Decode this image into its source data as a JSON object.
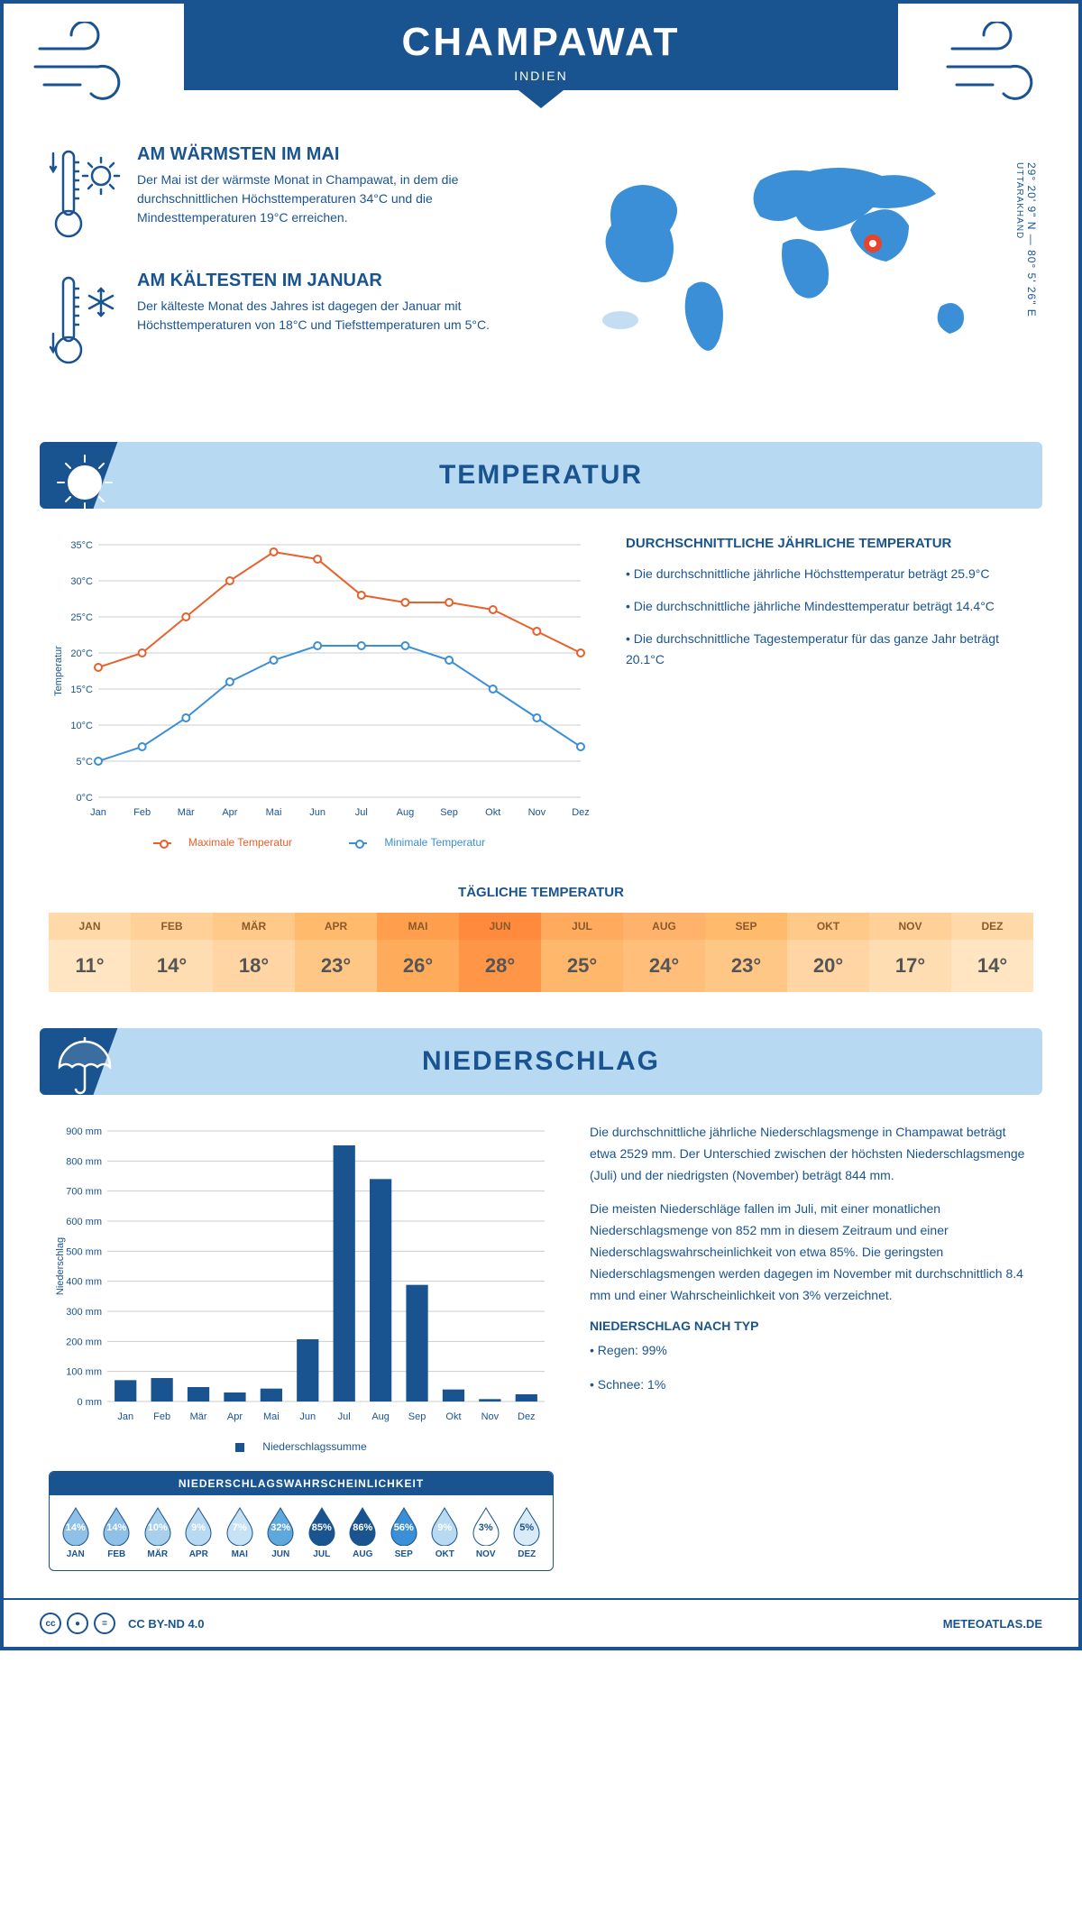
{
  "header": {
    "title": "CHAMPAWAT",
    "subtitle": "INDIEN"
  },
  "coords": {
    "lat": "29° 20' 9\" N",
    "lon": "80° 5' 26\" E",
    "region": "UTTARAKHAND"
  },
  "facts": {
    "warm": {
      "title": "AM WÄRMSTEN IM MAI",
      "text": "Der Mai ist der wärmste Monat in Champawat, in dem die durchschnittlichen Höchsttemperaturen 34°C und die Mindesttemperaturen 19°C erreichen."
    },
    "cold": {
      "title": "AM KÄLTESTEN IM JANUAR",
      "text": "Der kälteste Monat des Jahres ist dagegen der Januar mit Höchsttemperaturen von 18°C und Tiefsttemperaturen um 5°C."
    }
  },
  "temperature": {
    "section_title": "TEMPERATUR",
    "summary_title": "DURCHSCHNITTLICHE JÄHRLICHE TEMPERATUR",
    "summary_lines": [
      "• Die durchschnittliche jährliche Höchsttemperatur beträgt 25.9°C",
      "• Die durchschnittliche jährliche Mindesttemperatur beträgt 14.4°C",
      "• Die durchschnittliche Tagestemperatur für das ganze Jahr beträgt 20.1°C"
    ],
    "chart": {
      "type": "line",
      "months": [
        "Jan",
        "Feb",
        "Mär",
        "Apr",
        "Mai",
        "Jun",
        "Jul",
        "Aug",
        "Sep",
        "Okt",
        "Nov",
        "Dez"
      ],
      "max_series": [
        18,
        20,
        25,
        30,
        34,
        33,
        28,
        27,
        27,
        26,
        23,
        20
      ],
      "min_series": [
        5,
        7,
        11,
        16,
        19,
        21,
        21,
        21,
        19,
        15,
        11,
        7
      ],
      "max_color": "#e8612c",
      "min_color": "#3b8fd6",
      "ylabel": "Temperatur",
      "ylim": [
        0,
        35
      ],
      "ytick_step": 5,
      "ytick_suffix": "°C",
      "grid_color": "#cccccc",
      "line_width": 2,
      "marker_size": 4,
      "legend_max": "Maximale Temperatur",
      "legend_min": "Minimale Temperatur"
    },
    "daily": {
      "title": "TÄGLICHE TEMPERATUR",
      "months": [
        "JAN",
        "FEB",
        "MÄR",
        "APR",
        "MAI",
        "JUN",
        "JUL",
        "AUG",
        "SEP",
        "OKT",
        "NOV",
        "DEZ"
      ],
      "values": [
        "11°",
        "14°",
        "18°",
        "23°",
        "26°",
        "28°",
        "25°",
        "24°",
        "23°",
        "20°",
        "17°",
        "14°"
      ],
      "header_colors": [
        "#ffd9a8",
        "#ffd199",
        "#ffc98a",
        "#ffba6b",
        "#ff9e4d",
        "#ff8a3d",
        "#ffaa5c",
        "#ffb26b",
        "#ffba6b",
        "#ffc98a",
        "#ffd199",
        "#ffd9a8"
      ],
      "value_colors": [
        "#ffe5c2",
        "#ffddb3",
        "#ffd5a4",
        "#ffc785",
        "#ffab5c",
        "#ff9547",
        "#ffb76b",
        "#ffbf7a",
        "#ffc785",
        "#ffd5a4",
        "#ffddb3",
        "#ffe5c2"
      ]
    }
  },
  "precipitation": {
    "section_title": "NIEDERSCHLAG",
    "chart": {
      "type": "bar",
      "months": [
        "Jan",
        "Feb",
        "Mär",
        "Apr",
        "Mai",
        "Jun",
        "Jul",
        "Aug",
        "Sep",
        "Okt",
        "Nov",
        "Dez"
      ],
      "values": [
        71,
        78,
        48,
        30,
        43,
        207,
        852,
        740,
        388,
        40,
        8,
        24
      ],
      "bar_color": "#1a5490",
      "ylabel": "Niederschlag",
      "ylim": [
        0,
        900
      ],
      "ytick_step": 100,
      "ytick_suffix": " mm",
      "grid_color": "#cccccc",
      "legend": "Niederschlagssumme"
    },
    "text1": "Die durchschnittliche jährliche Niederschlagsmenge in Champawat beträgt etwa 2529 mm. Der Unterschied zwischen der höchsten Niederschlagsmenge (Juli) und der niedrigsten (November) beträgt 844 mm.",
    "text2": "Die meisten Niederschläge fallen im Juli, mit einer monatlichen Niederschlagsmenge von 852 mm in diesem Zeitraum und einer Niederschlagswahrscheinlichkeit von etwa 85%. Die geringsten Niederschlagsmengen werden dagegen im November mit durchschnittlich 8.4 mm und einer Wahrscheinlichkeit von 3% verzeichnet.",
    "by_type_title": "NIEDERSCHLAG NACH TYP",
    "by_type": [
      "• Regen: 99%",
      "• Schnee: 1%"
    ],
    "probability": {
      "title": "NIEDERSCHLAGSWAHRSCHEINLICHKEIT",
      "months": [
        "JAN",
        "FEB",
        "MÄR",
        "APR",
        "MAI",
        "JUN",
        "JUL",
        "AUG",
        "SEP",
        "OKT",
        "NOV",
        "DEZ"
      ],
      "values": [
        "14%",
        "14%",
        "10%",
        "9%",
        "7%",
        "32%",
        "85%",
        "86%",
        "56%",
        "9%",
        "3%",
        "5%"
      ],
      "fill_colors": [
        "#8fc1e8",
        "#8fc1e8",
        "#a8d0ed",
        "#b8d9f2",
        "#c8e2f5",
        "#5fa8db",
        "#1a5490",
        "#1a5490",
        "#3b8fd6",
        "#b8d9f2",
        "#ffffff",
        "#d8ebf7"
      ],
      "text_colors": [
        "#fff",
        "#fff",
        "#fff",
        "#fff",
        "#fff",
        "#fff",
        "#fff",
        "#fff",
        "#fff",
        "#fff",
        "#1a5490",
        "#1a5490"
      ]
    }
  },
  "footer": {
    "license": "CC BY-ND 4.0",
    "site": "METEOATLAS.DE"
  }
}
